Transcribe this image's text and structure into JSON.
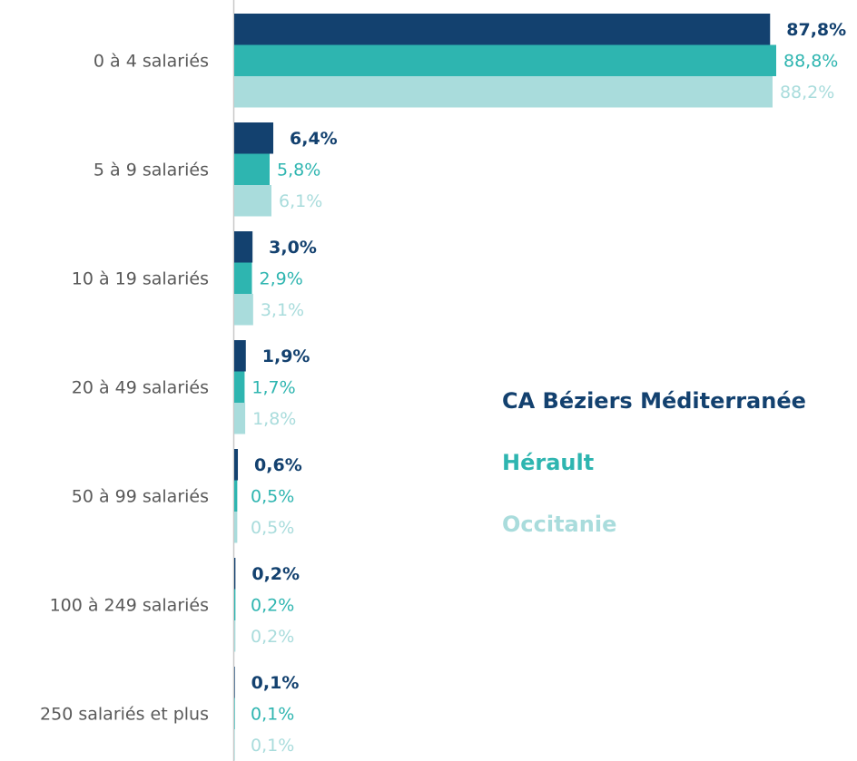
{
  "chart_data": {
    "type": "bar",
    "orientation": "horizontal",
    "categories": [
      "0 à 4 salariés",
      "5 à 9 salariés",
      "10 à 19 salariés",
      "20 à 49 salariés",
      "50 à 99 salariés",
      "100 à 249 salariés",
      "250 salariés et plus"
    ],
    "series": [
      {
        "name": "CA Béziers Méditerranée",
        "color": "#13416f",
        "values": [
          87.8,
          6.4,
          3.0,
          1.9,
          0.6,
          0.2,
          0.1
        ],
        "value_labels": [
          "87,8%",
          "6,4%",
          "3,0%",
          "1,9%",
          "0,6%",
          "0,2%",
          "0,1%"
        ]
      },
      {
        "name": "Hérault",
        "color": "#2eb5b0",
        "values": [
          88.8,
          5.8,
          2.9,
          1.7,
          0.5,
          0.2,
          0.1
        ],
        "value_labels": [
          "88,8%",
          "5,8%",
          "2,9%",
          "1,7%",
          "0,5%",
          "0,2%",
          "0,1%"
        ]
      },
      {
        "name": "Occitanie",
        "color": "#a9dcdc",
        "values": [
          88.2,
          6.1,
          3.1,
          1.8,
          0.5,
          0.2,
          0.1
        ],
        "value_labels": [
          "88,2%",
          "6,1%",
          "3,1%",
          "1,8%",
          "0,5%",
          "0,2%",
          "0,1%"
        ]
      }
    ]
  }
}
